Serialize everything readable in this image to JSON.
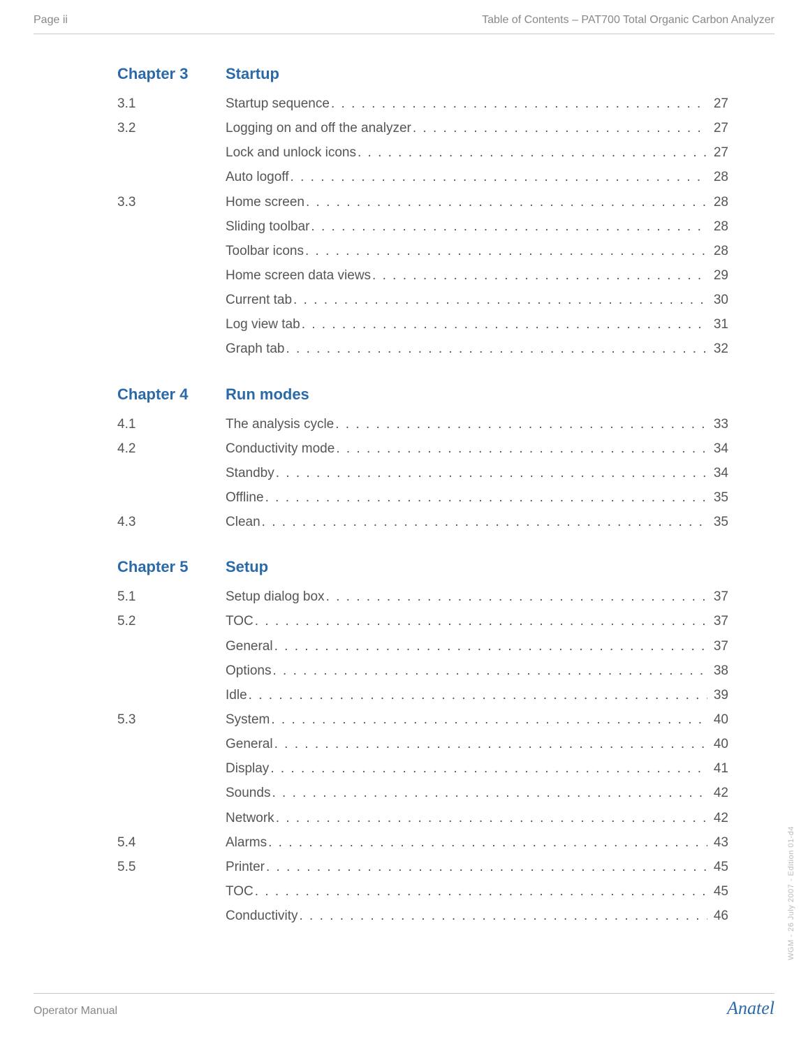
{
  "header": {
    "left": "Page ii",
    "right": "Table of Contents – PAT700 Total Organic Carbon Analyzer"
  },
  "chapters": [
    {
      "label": "Chapter 3",
      "title": "Startup",
      "entries": [
        {
          "num": "3.1",
          "title": "Startup sequence",
          "page": "27"
        },
        {
          "num": "3.2",
          "title": "Logging on and off the analyzer",
          "page": "27"
        },
        {
          "num": "",
          "title": "Lock and unlock icons",
          "page": "27"
        },
        {
          "num": "",
          "title": "Auto logoff",
          "page": "28"
        },
        {
          "num": "3.3",
          "title": "Home screen",
          "page": "28"
        },
        {
          "num": "",
          "title": "Sliding toolbar",
          "page": "28"
        },
        {
          "num": "",
          "title": "Toolbar icons",
          "page": "28"
        },
        {
          "num": "",
          "title": "Home screen data views",
          "page": "29"
        },
        {
          "num": "",
          "title": "Current tab",
          "page": "30"
        },
        {
          "num": "",
          "title": "Log view tab",
          "page": "31"
        },
        {
          "num": "",
          "title": "Graph tab",
          "page": "32"
        }
      ]
    },
    {
      "label": "Chapter 4",
      "title": "Run modes",
      "entries": [
        {
          "num": "4.1",
          "title": "The analysis cycle",
          "page": "33"
        },
        {
          "num": "4.2",
          "title": "Conductivity mode",
          "page": "34"
        },
        {
          "num": "",
          "title": "Standby",
          "page": "34"
        },
        {
          "num": "",
          "title": "Offline",
          "page": "35"
        },
        {
          "num": "4.3",
          "title": "Clean",
          "page": "35"
        }
      ]
    },
    {
      "label": "Chapter 5",
      "title": "Setup",
      "entries": [
        {
          "num": "5.1",
          "title": "Setup dialog box",
          "page": "37"
        },
        {
          "num": "5.2",
          "title": "TOC",
          "page": "37"
        },
        {
          "num": "",
          "title": "General",
          "page": "37"
        },
        {
          "num": "",
          "title": "Options",
          "page": "38"
        },
        {
          "num": "",
          "title": "Idle",
          "page": "39"
        },
        {
          "num": "5.3",
          "title": "System",
          "page": "40"
        },
        {
          "num": "",
          "title": "General",
          "page": "40"
        },
        {
          "num": "",
          "title": "Display",
          "page": "41"
        },
        {
          "num": "",
          "title": "Sounds",
          "page": "42"
        },
        {
          "num": "",
          "title": "Network",
          "page": "42"
        },
        {
          "num": "5.4",
          "title": "Alarms",
          "page": "43"
        },
        {
          "num": "5.5",
          "title": "Printer",
          "page": "45"
        },
        {
          "num": "",
          "title": "TOC",
          "page": "45"
        },
        {
          "num": "",
          "title": "Conductivity",
          "page": "46"
        }
      ]
    }
  ],
  "footer": {
    "left": "Operator Manual",
    "right": "Anatel"
  },
  "side_note": "WGM - 26 July 2007 - Edition 01-d4",
  "colors": {
    "accent": "#2b6aa8",
    "muted": "#888888",
    "body": "#555555",
    "rule": "#c9c9c9"
  },
  "typography": {
    "heading_fontsize_pt": 16,
    "body_fontsize_pt": 14,
    "footer_brand_fontsize_pt": 20
  }
}
